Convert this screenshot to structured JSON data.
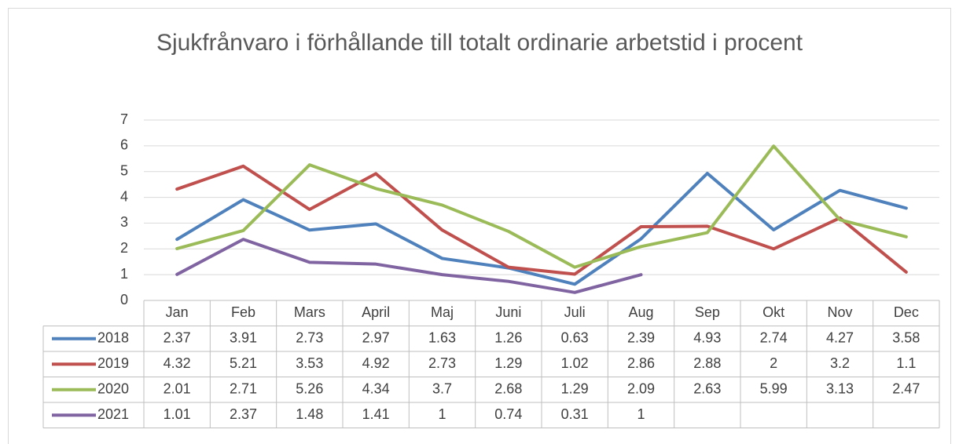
{
  "chart_data": {
    "type": "line",
    "title": "Sjukfrånvaro i förhållande till totalt ordinarie arbetstid i procent",
    "categories": [
      "Jan",
      "Feb",
      "Mars",
      "April",
      "Maj",
      "Juni",
      "Juli",
      "Aug",
      "Sep",
      "Okt",
      "Nov",
      "Dec"
    ],
    "series": [
      {
        "name": "2018",
        "color": "#4f81bd",
        "values": [
          2.37,
          3.91,
          2.73,
          2.97,
          1.63,
          1.26,
          0.63,
          2.39,
          4.93,
          2.74,
          4.27,
          3.58
        ]
      },
      {
        "name": "2019",
        "color": "#c0504d",
        "values": [
          4.32,
          5.21,
          3.53,
          4.92,
          2.73,
          1.29,
          1.02,
          2.86,
          2.88,
          2,
          3.2,
          1.1
        ]
      },
      {
        "name": "2020",
        "color": "#9bbb59",
        "values": [
          2.01,
          2.71,
          5.26,
          4.34,
          3.7,
          2.68,
          1.29,
          2.09,
          2.63,
          5.99,
          3.13,
          2.47
        ]
      },
      {
        "name": "2021",
        "color": "#8064a2",
        "values": [
          1.01,
          2.37,
          1.48,
          1.41,
          1,
          0.74,
          0.31,
          1,
          null,
          null,
          null,
          null
        ]
      }
    ],
    "ylim": [
      0,
      7
    ],
    "yticks": [
      0,
      1,
      2,
      3,
      4,
      5,
      6,
      7
    ],
    "grid": true,
    "data_table": true
  }
}
